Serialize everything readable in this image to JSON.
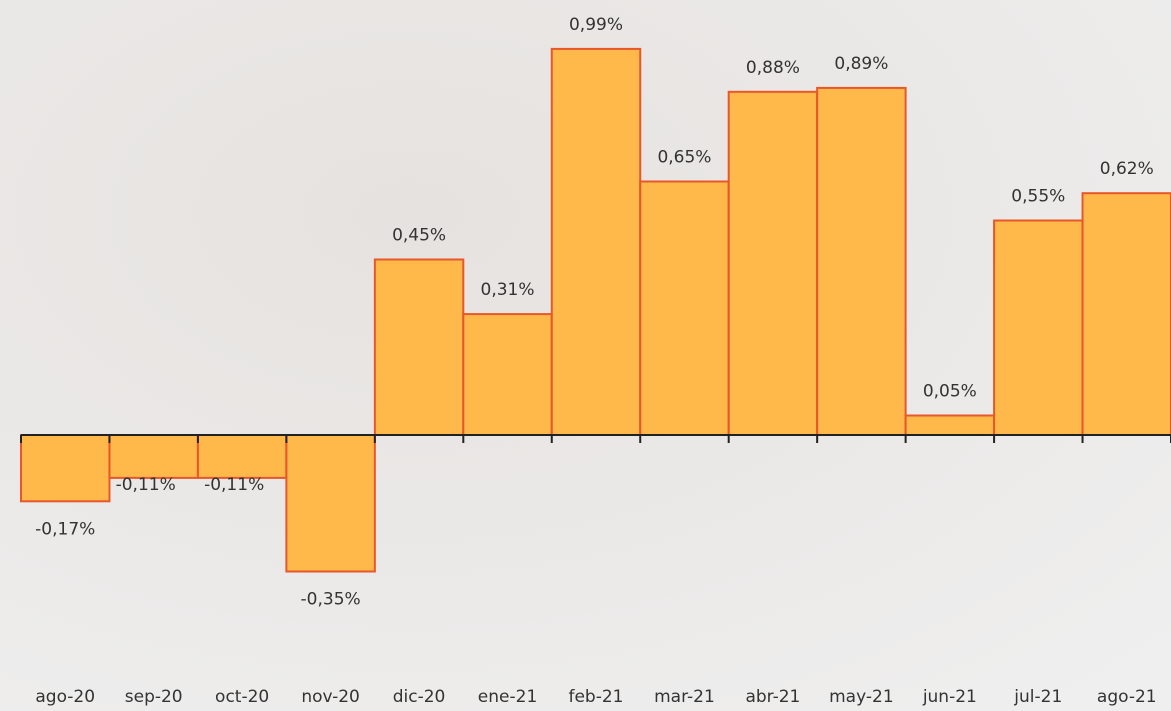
{
  "chart_data": {
    "type": "bar",
    "categories": [
      "ago-20",
      "sep-20",
      "oct-20",
      "nov-20",
      "dic-20",
      "ene-21",
      "feb-21",
      "mar-21",
      "abr-21",
      "may-21",
      "jun-21",
      "jul-21",
      "ago-21"
    ],
    "values": [
      -0.17,
      -0.11,
      -0.11,
      -0.35,
      0.45,
      0.31,
      0.99,
      0.65,
      0.88,
      0.89,
      0.05,
      0.55,
      0.62
    ],
    "value_labels": [
      "-0,17%",
      "-0,11%",
      "-0,11%",
      "-0,35%",
      "0,45%",
      "0,31%",
      "0,99%",
      "0,65%",
      "0,88%",
      "0,89%",
      "0,05%",
      "0,55%",
      "0,62%"
    ],
    "color": "#ffb84a",
    "edgecolor": "#e8572a"
  }
}
